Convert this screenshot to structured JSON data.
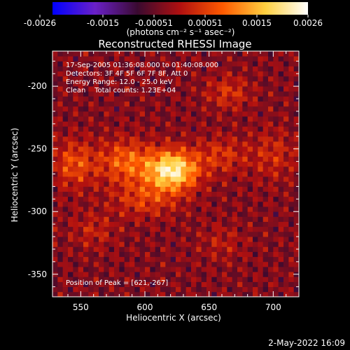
{
  "chart_data": {
    "type": "heatmap",
    "title": "Reconstructed RHESSI Image",
    "xlabel": "Heliocentric X (arcsec)",
    "ylabel": "Heliocentric Y (arcsec)",
    "xlim": [
      528,
      720
    ],
    "ylim": [
      -368,
      -172
    ],
    "x_ticks": [
      550,
      600,
      650,
      700
    ],
    "y_ticks": [
      -200,
      -250,
      -300,
      -350
    ],
    "colorbar": {
      "label": "(photons cm⁻² s⁻¹ asec⁻²)",
      "range": [
        -0.0026,
        0.0026
      ],
      "tick_labels": [
        "-0.0026",
        "-0.0015",
        "-0.00051",
        "0.00051",
        "0.0015",
        "0.0026"
      ],
      "colors": [
        "#0000ff",
        "#6a20c8",
        "#3a0a30",
        "#b01010",
        "#ff5a00",
        "#ffd040",
        "#ffffff"
      ]
    },
    "annotations": [
      "17-Sep-2005 01:36:08.000 to 01:40:08.000",
      "Detectors: 3F 4F 5F 6F 7F 8F, Att 0",
      "Energy Range: 12.0 - 25.0 keV",
      "Clean    Total counts: 1.23E+04"
    ],
    "peak_label": "Position of Peak = [621,-267]",
    "peak": {
      "x": 621,
      "y": -267,
      "value": 0.0026
    },
    "sources": [
      {
        "x": 621,
        "y": -267,
        "peak": 0.0026,
        "sx": 14,
        "sy": 11
      },
      {
        "x": 585,
        "y": -260,
        "peak": 0.0012,
        "sx": 14,
        "sy": 12
      },
      {
        "x": 545,
        "y": -262,
        "peak": 0.001,
        "sx": 12,
        "sy": 13
      },
      {
        "x": 600,
        "y": -290,
        "peak": 0.0008,
        "sx": 18,
        "sy": 10
      },
      {
        "x": 660,
        "y": -255,
        "peak": 0.0007,
        "sx": 14,
        "sy": 10
      },
      {
        "x": 700,
        "y": -255,
        "peak": 0.0006,
        "sx": 12,
        "sy": 14
      },
      {
        "x": 665,
        "y": -205,
        "peak": 0.0007,
        "sx": 12,
        "sy": 9
      },
      {
        "x": 560,
        "y": -315,
        "peak": 0.0005,
        "sx": 12,
        "sy": 10
      },
      {
        "x": 660,
        "y": -325,
        "peak": 0.0004,
        "sx": 12,
        "sy": 10
      }
    ]
  },
  "footer_date": "2-May-2022 16:09"
}
